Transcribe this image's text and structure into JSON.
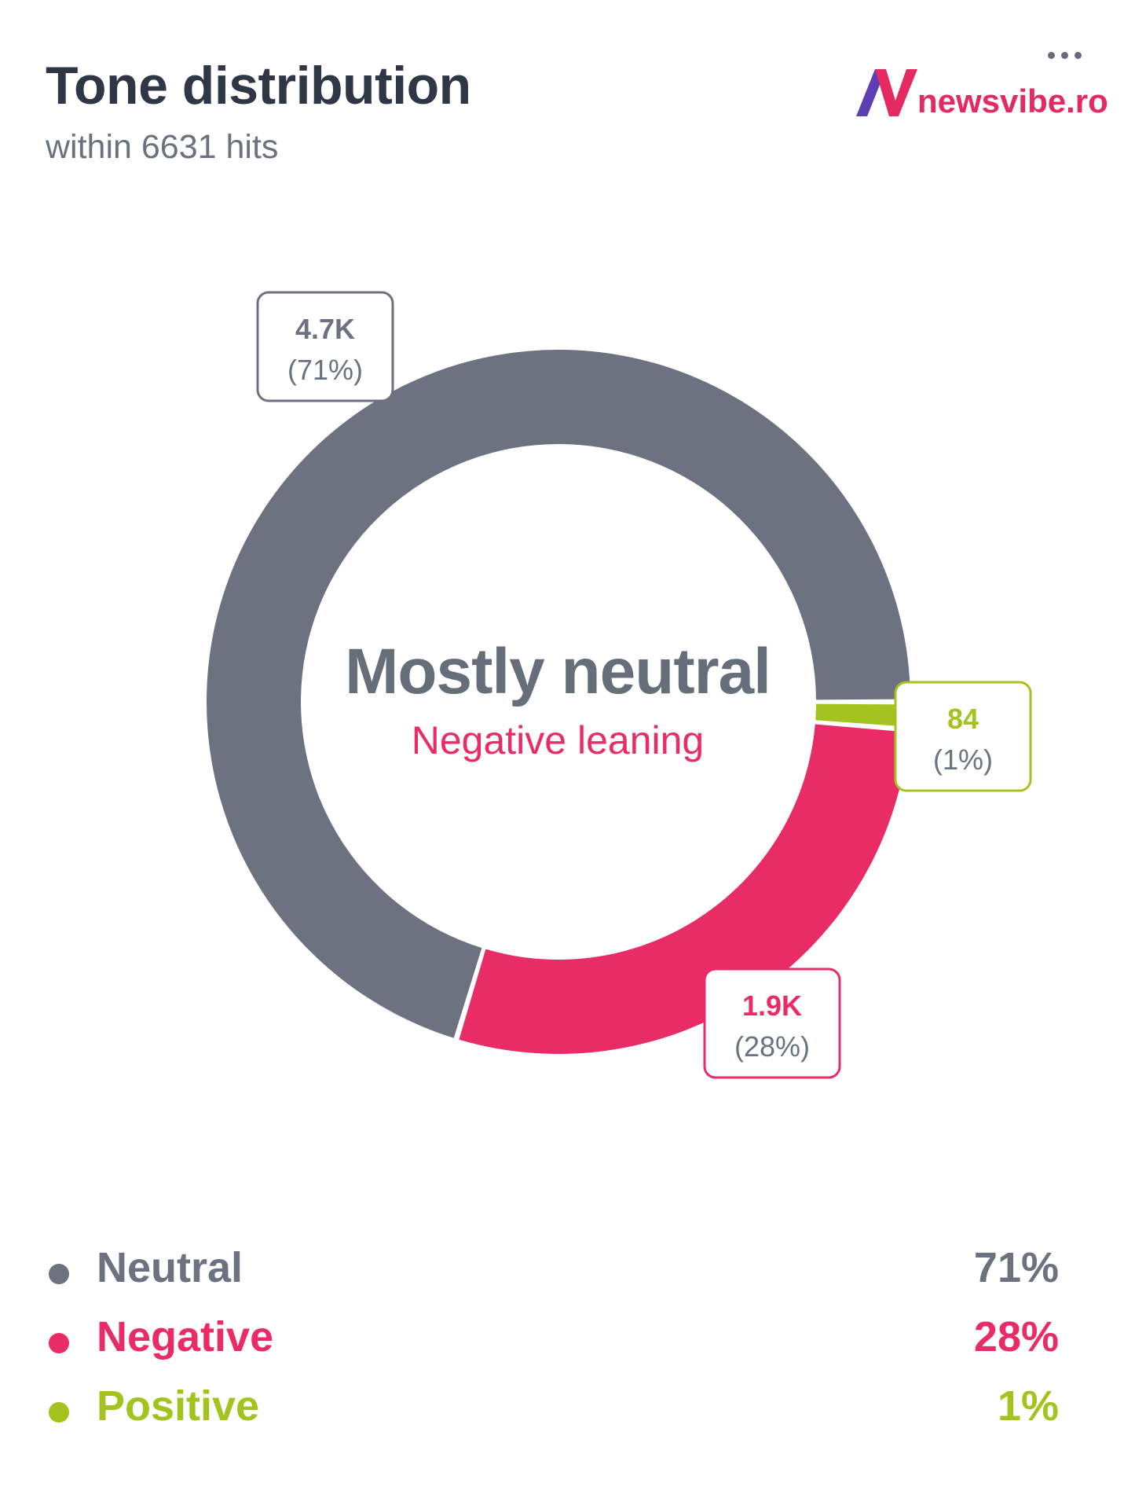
{
  "header": {
    "title": "Tone distribution",
    "subtitle": "within 6631 hits",
    "more_icon": "more-horizontal-icon"
  },
  "brand": {
    "name": "newsvibe.ro",
    "logo_icon": "newsvibe-n-logo",
    "color": "#e52a62"
  },
  "center": {
    "title": "Mostly neutral",
    "subtitle": "Negative leaning"
  },
  "chart_data": {
    "type": "pie",
    "style": "donut",
    "total": 6631,
    "series": [
      {
        "name": "Neutral",
        "value": 4700,
        "value_label": "4.7K",
        "percent_label": "(71%)",
        "percent": 71,
        "color": "#6c7280"
      },
      {
        "name": "Negative",
        "value": 1900,
        "value_label": "1.9K",
        "percent_label": "(28%)",
        "percent": 28,
        "color": "#ea2c66"
      },
      {
        "name": "Positive",
        "value": 84,
        "value_label": "84",
        "percent_label": "(1%)",
        "percent": 1,
        "color": "#a5c31f"
      }
    ]
  },
  "legend": [
    {
      "label": "Neutral",
      "value": "71%",
      "color": "#6c7280"
    },
    {
      "label": "Negative",
      "value": "28%",
      "color": "#ea2c66"
    },
    {
      "label": "Positive",
      "value": "1%",
      "color": "#a5c31f"
    }
  ]
}
